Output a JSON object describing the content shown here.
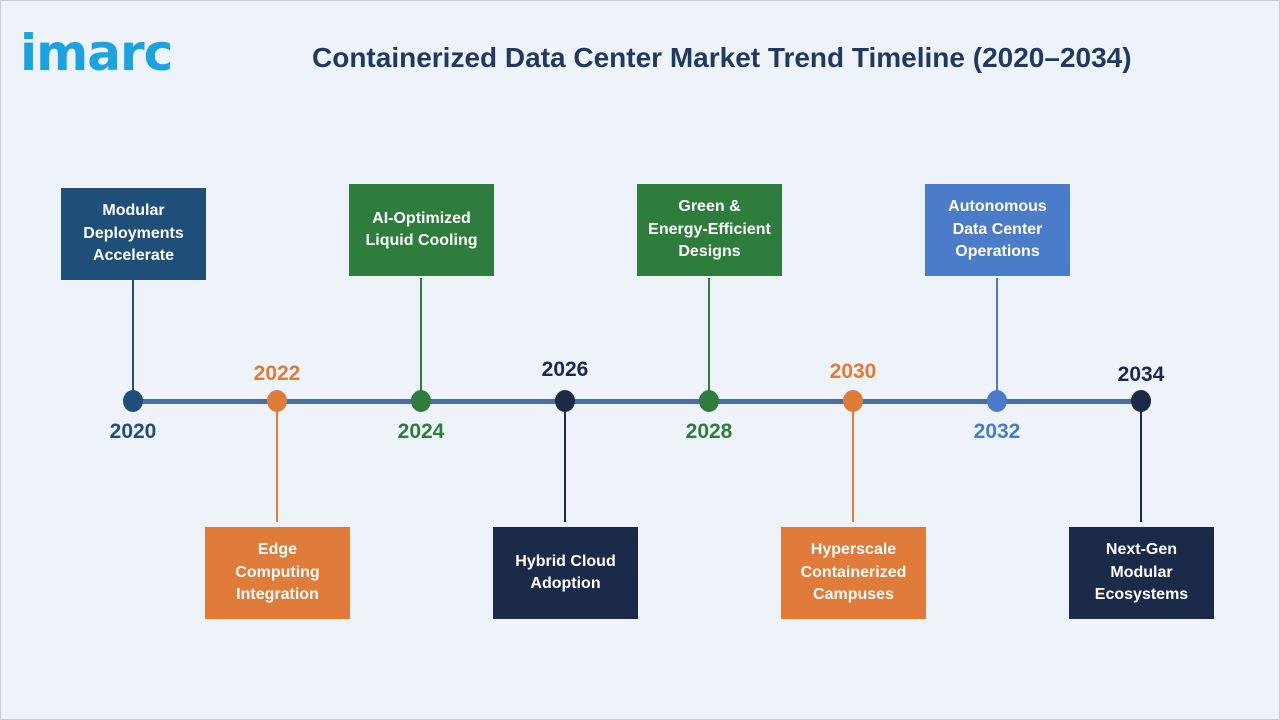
{
  "brand": {
    "logo_text": "imarc",
    "color": "#1aa3e0"
  },
  "title": "Containerized Data Center Market Trend Timeline (2020–2034)",
  "timeline": [
    {
      "year": "2020",
      "label": "Modular\nDeployments\nAccelerate",
      "color": "#1f4e79",
      "position": "top"
    },
    {
      "year": "2022",
      "label": "Edge\nComputing\nIntegration",
      "color": "#e07b39",
      "position": "bottom"
    },
    {
      "year": "2024",
      "label": "AI-Optimized\nLiquid Cooling",
      "color": "#2e7d3c",
      "position": "top"
    },
    {
      "year": "2026",
      "label": "Hybrid Cloud\nAdoption",
      "color": "#1c2a4a",
      "position": "bottom"
    },
    {
      "year": "2028",
      "label": "Green &\nEnergy-Efficient\nDesigns",
      "color": "#2e7d3c",
      "position": "top"
    },
    {
      "year": "2030",
      "label": "Hyperscale\nContainerized\nCampuses",
      "color": "#e07b39",
      "position": "bottom"
    },
    {
      "year": "2032",
      "label": "Autonomous\nData Center\nOperations",
      "color": "#4a7cc9",
      "position": "top"
    },
    {
      "year": "2034",
      "label": "Next-Gen\nModular\nEcosystems",
      "color": "#1c2a4a",
      "position": "bottom"
    }
  ]
}
